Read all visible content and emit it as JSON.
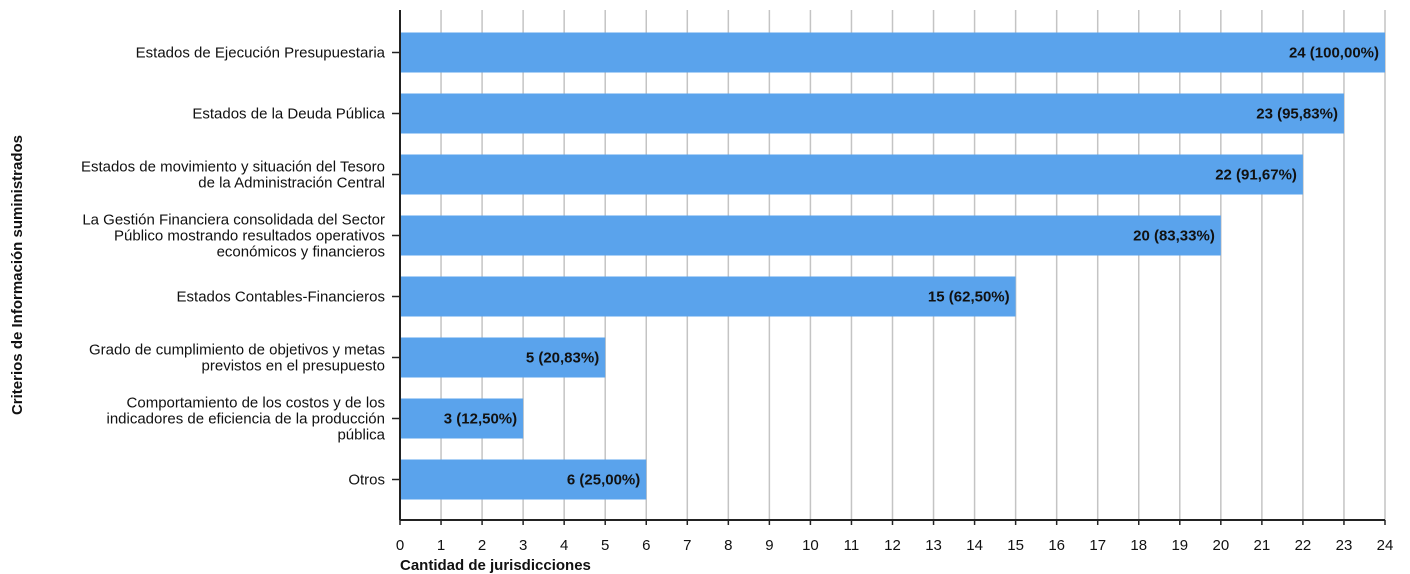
{
  "chart_data": {
    "type": "bar",
    "orientation": "horizontal",
    "categories": [
      [
        "Estados de Ejecución Presupuestaria"
      ],
      [
        "Estados de la Deuda Pública"
      ],
      [
        "Estados de movimiento y situación del Tesoro",
        "de la Administración Central"
      ],
      [
        "La Gestión Financiera consolidada del Sector",
        "Público mostrando resultados operativos",
        "económicos y financieros"
      ],
      [
        "Estados Contables-Financieros"
      ],
      [
        "Grado de cumplimiento de objetivos y metas",
        "previstos en el presupuesto"
      ],
      [
        "Comportamiento de los costos y de los",
        "indicadores de eficiencia de la producción",
        "pública"
      ],
      [
        "Otros"
      ]
    ],
    "values": [
      24,
      23,
      22,
      20,
      15,
      5,
      3,
      6
    ],
    "data_labels": [
      "24 (100,00%)",
      "23 (95,83%)",
      "22 (91,67%)",
      "20 (83,33%)",
      "15 (62,50%)",
      "5 (20,83%)",
      "3 (12,50%)",
      "6 (25,00%)"
    ],
    "xlabel": "Cantidad de jurisdicciones",
    "ylabel": "Criterios de Información suministrados",
    "xlim": [
      0,
      24
    ],
    "xticks": [
      0,
      1,
      2,
      3,
      4,
      5,
      6,
      7,
      8,
      9,
      10,
      11,
      12,
      13,
      14,
      15,
      16,
      17,
      18,
      19,
      20,
      21,
      22,
      23,
      24
    ],
    "grid": "vertical",
    "colors": {
      "bar": "#5aa3ec",
      "grid": "#c4c4c4",
      "axis": "#222222",
      "text": "#111111"
    }
  }
}
